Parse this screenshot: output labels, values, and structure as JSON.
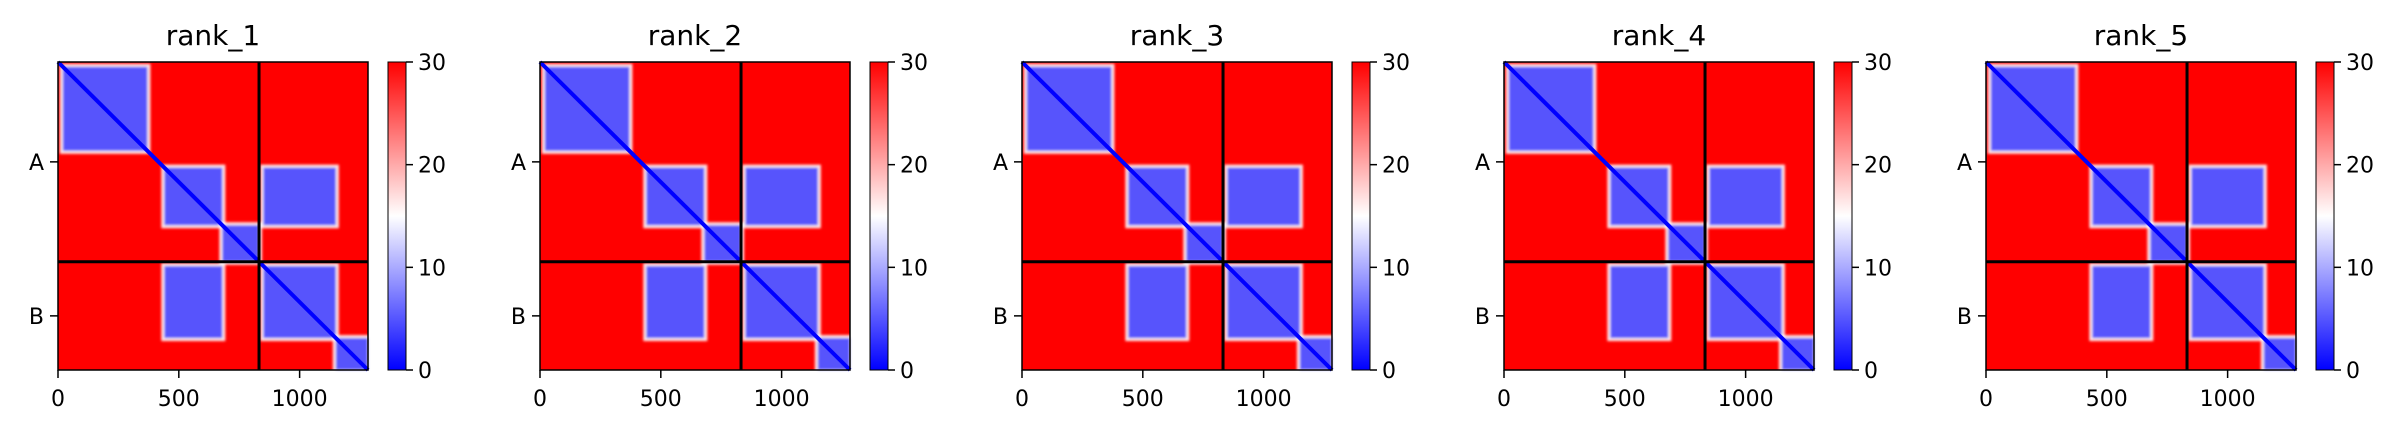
{
  "chart_data": [
    {
      "type": "heatmap",
      "title": "rank_1",
      "xlim": [
        0,
        1283
      ],
      "x_ticks": [
        0,
        500,
        1000
      ],
      "y_tick_labels": [
        "A",
        "B"
      ],
      "chain_boundary": 832,
      "colorbar": {
        "min": 0,
        "max": 30,
        "ticks": [
          0,
          10,
          20,
          30
        ],
        "colormap": "bwr"
      },
      "colors": {
        "low": "#0000ff",
        "mid": "#ffffff",
        "high": "#ff0000"
      }
    },
    {
      "type": "heatmap",
      "title": "rank_2",
      "xlim": [
        0,
        1283
      ],
      "x_ticks": [
        0,
        500,
        1000
      ],
      "y_tick_labels": [
        "A",
        "B"
      ],
      "chain_boundary": 832,
      "colorbar": {
        "min": 0,
        "max": 30,
        "ticks": [
          0,
          10,
          20,
          30
        ],
        "colormap": "bwr"
      },
      "colors": {
        "low": "#0000ff",
        "mid": "#ffffff",
        "high": "#ff0000"
      }
    },
    {
      "type": "heatmap",
      "title": "rank_3",
      "xlim": [
        0,
        1283
      ],
      "x_ticks": [
        0,
        500,
        1000
      ],
      "y_tick_labels": [
        "A",
        "B"
      ],
      "chain_boundary": 832,
      "colorbar": {
        "min": 0,
        "max": 30,
        "ticks": [
          0,
          10,
          20,
          30
        ],
        "colormap": "bwr"
      },
      "colors": {
        "low": "#0000ff",
        "mid": "#ffffff",
        "high": "#ff0000"
      }
    },
    {
      "type": "heatmap",
      "title": "rank_4",
      "xlim": [
        0,
        1283
      ],
      "x_ticks": [
        0,
        500,
        1000
      ],
      "y_tick_labels": [
        "A",
        "B"
      ],
      "chain_boundary": 832,
      "colorbar": {
        "min": 0,
        "max": 30,
        "ticks": [
          0,
          10,
          20,
          30
        ],
        "colormap": "bwr"
      },
      "colors": {
        "low": "#0000ff",
        "mid": "#ffffff",
        "high": "#ff0000"
      }
    },
    {
      "type": "heatmap",
      "title": "rank_5",
      "xlim": [
        0,
        1283
      ],
      "x_ticks": [
        0,
        500,
        1000
      ],
      "y_tick_labels": [
        "A",
        "B"
      ],
      "chain_boundary": 832,
      "colorbar": {
        "min": 0,
        "max": 30,
        "ticks": [
          0,
          10,
          20,
          30
        ],
        "colormap": "bwr"
      },
      "colors": {
        "low": "#0000ff",
        "mid": "#ffffff",
        "high": "#ff0000"
      }
    }
  ]
}
